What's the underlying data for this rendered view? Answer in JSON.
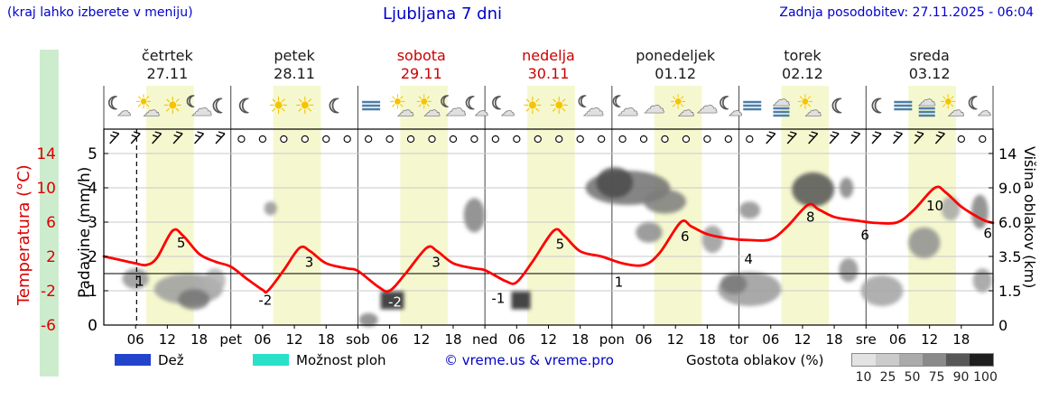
{
  "header": {
    "hint": "(kraj lahko izberete v meniju)",
    "title": "Ljubljana 7 dni",
    "updated": "Zadnja posodobitev: 27.11.2025 - 06:04"
  },
  "days": [
    {
      "name": "četrtek",
      "date": "27.11",
      "color": "#1a1a1a"
    },
    {
      "name": "petek",
      "date": "28.11",
      "color": "#1a1a1a"
    },
    {
      "name": "sobota",
      "date": "29.11",
      "color": "#cc0000"
    },
    {
      "name": "nedelja",
      "date": "30.11",
      "color": "#cc0000"
    },
    {
      "name": "ponedeljek",
      "date": "01.12",
      "color": "#1a1a1a"
    },
    {
      "name": "torek",
      "date": "02.12",
      "color": "#1a1a1a"
    },
    {
      "name": "sreda",
      "date": "03.12",
      "color": "#1a1a1a"
    }
  ],
  "axes": {
    "temperature": {
      "label": "Temperatura (°C)"
    },
    "precip": {
      "label": "Padavine (mm/h)"
    },
    "cloud": {
      "label": "Višina oblakov (km)"
    }
  },
  "legend": {
    "rain": "Dež",
    "showers": "Možnost ploh",
    "copyright": "© vreme.us & vreme.pro",
    "cloud_density": "Gostota oblakov (%)",
    "cloud_ticks": [
      "10",
      "25",
      "50",
      "75",
      "90",
      "100"
    ],
    "gradient_colors": [
      "#e3e3e3",
      "#cbcbcb",
      "#ababab",
      "#8a8a8a",
      "#575757",
      "#1e1e1e"
    ]
  },
  "colors": {
    "temperature": "#ff0000",
    "temp_axis": "#dd0000",
    "header_blue": "#0000cc",
    "rain": "#2244cc",
    "showers": "#2be0c8",
    "day_band": "#f5f8cf"
  },
  "chart_data": {
    "type": "line",
    "title": "Ljubljana 7 dni",
    "x_unit": "hours from Thursday 00:00",
    "x_range": [
      0,
      168
    ],
    "temp_axis": {
      "min": -6,
      "max": 14,
      "ticks": [
        14,
        10,
        6,
        2,
        -2,
        -6
      ]
    },
    "precip_axis": {
      "min": 0,
      "max": 5,
      "ticks": [
        5,
        4,
        3,
        2,
        1,
        0
      ]
    },
    "cloud_axis_ticks": [
      "14",
      "9.0",
      "6.0",
      "3.5",
      "1.5",
      "0"
    ],
    "freezing_line_temp": 0,
    "now_hour": 6.2,
    "day_bands": {
      "start_hour": 8,
      "end_hour": 17
    },
    "x_ticks": {
      "hour_labels": [
        "06",
        "12",
        "18"
      ],
      "boundary_labels": [
        "pet",
        "sob",
        "ned",
        "pon",
        "tor",
        "sre"
      ]
    },
    "temperature_series": [
      [
        0,
        2.0
      ],
      [
        3,
        1.6
      ],
      [
        6,
        1.2
      ],
      [
        8,
        1.0
      ],
      [
        10,
        1.8
      ],
      [
        13,
        5.0
      ],
      [
        15,
        4.4
      ],
      [
        18,
        2.3
      ],
      [
        21,
        1.4
      ],
      [
        24,
        0.8
      ],
      [
        27,
        -0.6
      ],
      [
        30,
        -1.9
      ],
      [
        31,
        -2.0
      ],
      [
        34,
        0.4
      ],
      [
        37,
        3.0
      ],
      [
        39,
        2.6
      ],
      [
        42,
        1.2
      ],
      [
        46,
        0.6
      ],
      [
        48,
        0.3
      ],
      [
        52,
        -1.6
      ],
      [
        54,
        -2.0
      ],
      [
        57,
        0.0
      ],
      [
        61,
        3.0
      ],
      [
        63,
        2.6
      ],
      [
        66,
        1.2
      ],
      [
        70,
        0.6
      ],
      [
        72,
        0.4
      ],
      [
        76,
        -0.9
      ],
      [
        78,
        -1.0
      ],
      [
        81,
        1.4
      ],
      [
        85,
        5.0
      ],
      [
        87,
        4.4
      ],
      [
        90,
        2.6
      ],
      [
        94,
        2.0
      ],
      [
        98,
        1.2
      ],
      [
        102,
        1.0
      ],
      [
        105,
        2.4
      ],
      [
        109,
        6.0
      ],
      [
        111,
        5.5
      ],
      [
        114,
        4.6
      ],
      [
        118,
        4.1
      ],
      [
        122,
        3.9
      ],
      [
        126,
        4.0
      ],
      [
        129,
        5.4
      ],
      [
        133,
        8.0
      ],
      [
        135,
        7.5
      ],
      [
        138,
        6.6
      ],
      [
        142,
        6.2
      ],
      [
        146,
        5.9
      ],
      [
        150,
        6.0
      ],
      [
        153,
        7.4
      ],
      [
        157,
        10.0
      ],
      [
        159,
        9.5
      ],
      [
        162,
        7.8
      ],
      [
        166,
        6.3
      ],
      [
        168,
        5.9
      ]
    ],
    "temp_labels": [
      {
        "text": "1",
        "h": 6.8,
        "t": -0.9
      },
      {
        "text": "5",
        "h": 14.6,
        "t": 3.6
      },
      {
        "text": "-2",
        "h": 30.5,
        "t": -3.1
      },
      {
        "text": "3",
        "h": 38.8,
        "t": 1.3
      },
      {
        "text": "-2",
        "h": 55.0,
        "t": -3.3,
        "dark": true
      },
      {
        "text": "3",
        "h": 62.8,
        "t": 1.3
      },
      {
        "text": "-1",
        "h": 74.5,
        "t": -2.9
      },
      {
        "text": "5",
        "h": 86.2,
        "t": 3.4
      },
      {
        "text": "1",
        "h": 97.3,
        "t": -1.0
      },
      {
        "text": "6",
        "h": 109.8,
        "t": 4.3
      },
      {
        "text": "4",
        "h": 121.8,
        "t": 1.7
      },
      {
        "text": "8",
        "h": 133.5,
        "t": 6.6
      },
      {
        "text": "6",
        "h": 143.8,
        "t": 4.5
      },
      {
        "text": "10",
        "h": 157.0,
        "t": 7.9
      },
      {
        "text": "6",
        "h": 167.0,
        "t": 4.7
      }
    ],
    "clouds": [
      {
        "h": 6,
        "lvl": 1.35,
        "rw": 2.5,
        "rh": 0.3,
        "shade": 45
      },
      {
        "h": 16,
        "lvl": 1.05,
        "rw": 6.5,
        "rh": 0.45,
        "shade": 40
      },
      {
        "h": 17,
        "lvl": 0.75,
        "rw": 3,
        "rh": 0.3,
        "shade": 62
      },
      {
        "h": 21,
        "lvl": 1.3,
        "rw": 2,
        "rh": 0.35,
        "shade": 30
      },
      {
        "h": 31.5,
        "lvl": 3.4,
        "rw": 1.2,
        "rh": 0.2,
        "shade": 45
      },
      {
        "h": 50,
        "lvl": 0.15,
        "rw": 1.8,
        "rh": 0.2,
        "shade": 55
      },
      {
        "h": 54.5,
        "lvl": 0.72,
        "rw": 2.2,
        "rh": 0.26,
        "shade": 88,
        "rect": true
      },
      {
        "h": 70,
        "lvl": 3.2,
        "rw": 2,
        "rh": 0.5,
        "shade": 55
      },
      {
        "h": 78.8,
        "lvl": 0.72,
        "rw": 1.8,
        "rh": 0.26,
        "shade": 88,
        "rect": true
      },
      {
        "h": 99,
        "lvl": 4.0,
        "rw": 8,
        "rh": 0.5,
        "shade": 65
      },
      {
        "h": 96.5,
        "lvl": 4.15,
        "rw": 3.5,
        "rh": 0.45,
        "shade": 85
      },
      {
        "h": 106,
        "lvl": 3.6,
        "rw": 4,
        "rh": 0.35,
        "shade": 58
      },
      {
        "h": 103,
        "lvl": 2.7,
        "rw": 2.5,
        "rh": 0.3,
        "shade": 50
      },
      {
        "h": 115,
        "lvl": 2.5,
        "rw": 2,
        "rh": 0.4,
        "shade": 42
      },
      {
        "h": 122,
        "lvl": 1.05,
        "rw": 6,
        "rh": 0.5,
        "shade": 42
      },
      {
        "h": 119,
        "lvl": 1.2,
        "rw": 2.5,
        "rh": 0.3,
        "shade": 60
      },
      {
        "h": 122,
        "lvl": 3.35,
        "rw": 2,
        "rh": 0.25,
        "shade": 48
      },
      {
        "h": 134,
        "lvl": 3.95,
        "rw": 4,
        "rh": 0.5,
        "shade": 80
      },
      {
        "h": 140.3,
        "lvl": 4.0,
        "rw": 1.3,
        "rh": 0.3,
        "shade": 55
      },
      {
        "h": 140.7,
        "lvl": 1.6,
        "rw": 1.8,
        "rh": 0.35,
        "shade": 48
      },
      {
        "h": 147,
        "lvl": 1.0,
        "rw": 4,
        "rh": 0.45,
        "shade": 38
      },
      {
        "h": 155,
        "lvl": 2.4,
        "rw": 3,
        "rh": 0.45,
        "shade": 48
      },
      {
        "h": 160,
        "lvl": 3.4,
        "rw": 1.8,
        "rh": 0.35,
        "shade": 35
      },
      {
        "h": 165.5,
        "lvl": 3.3,
        "rw": 1.6,
        "rh": 0.5,
        "shade": 55
      },
      {
        "h": 166,
        "lvl": 1.3,
        "rw": 1.8,
        "rh": 0.35,
        "shade": 40
      }
    ],
    "wind": "bbbbbbooooooooooooooooooooooooobbbbbbbbboo",
    "icons": [
      [
        [
          "moon-cloud",
          2.5
        ],
        [
          "sun-cloud",
          8
        ],
        [
          "sun",
          13
        ],
        [
          "cloud-moon",
          18
        ],
        [
          "moon",
          22
        ]
      ],
      [
        [
          "moon",
          3
        ],
        [
          "sun",
          9
        ],
        [
          "sun",
          14
        ],
        [
          "moon",
          20
        ]
      ],
      [
        [
          "fog",
          2.5
        ],
        [
          "sun-cloud",
          8
        ],
        [
          "sun-cloud",
          13
        ],
        [
          "cloud-moon",
          18
        ],
        [
          "moon-cloud",
          22
        ]
      ],
      [
        [
          "moon-cloud",
          3
        ],
        [
          "sun",
          9
        ],
        [
          "sun",
          14
        ],
        [
          "cloud-moon",
          20
        ]
      ],
      [
        [
          "cloud-moon",
          2.5
        ],
        [
          "cloud",
          8
        ],
        [
          "sun-cloud",
          13
        ],
        [
          "cloud",
          18
        ],
        [
          "moon-cloud",
          22
        ]
      ],
      [
        [
          "fog",
          2.5
        ],
        [
          "fog-cloud",
          8
        ],
        [
          "sun-cloud",
          13
        ],
        [
          "moon",
          19
        ]
      ],
      [
        [
          "moon",
          2.5
        ],
        [
          "fog",
          7
        ],
        [
          "fog-cloud",
          11.5
        ],
        [
          "sun-cloud",
          16
        ],
        [
          "moon-cloud",
          21
        ]
      ]
    ]
  }
}
